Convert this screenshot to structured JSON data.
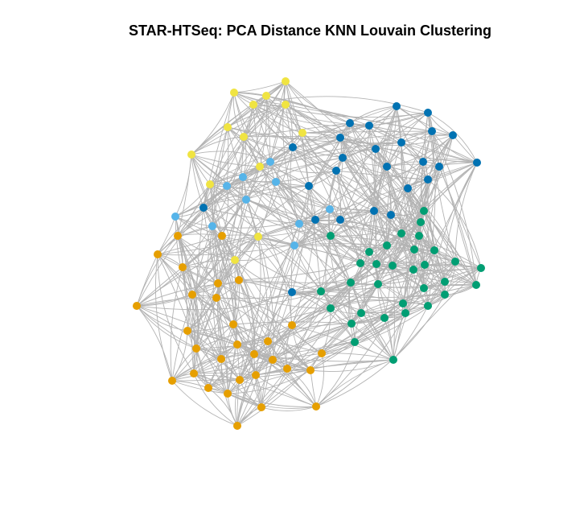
{
  "title": "STAR-HTSeq: PCA Distance KNN Louvain Clustering",
  "colors": {
    "edge": "#b3b3b3",
    "yellow": "#f0e442",
    "darkblue": "#0072b2",
    "lightblue": "#56b4e9",
    "orange": "#e69f00",
    "green": "#009e73"
  },
  "network": {
    "node_count": 105,
    "clusters": [
      {
        "id": "yellow",
        "color_key": "yellow",
        "size": 15
      },
      {
        "id": "darkblue",
        "color_key": "darkblue",
        "size": 28
      },
      {
        "id": "lightblue",
        "color_key": "lightblue",
        "size": 10
      },
      {
        "id": "orange",
        "color_key": "orange",
        "size": 29
      },
      {
        "id": "green",
        "color_key": "green",
        "size": 23
      }
    ]
  }
}
